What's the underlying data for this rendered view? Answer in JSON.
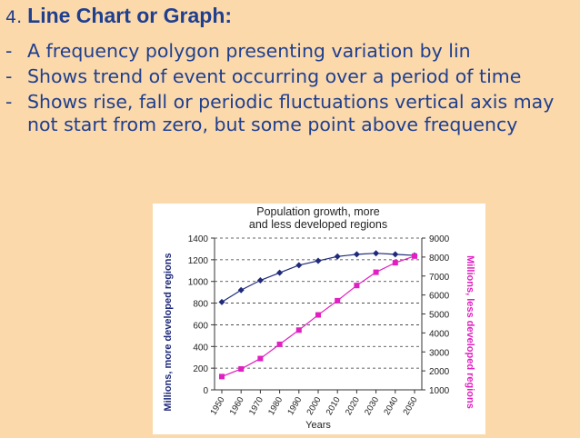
{
  "slide": {
    "number": "4.",
    "title": "Line Chart or Graph:",
    "bullets": [
      {
        "dash": "-",
        "text": "A frequency polygon presenting variation by lin"
      },
      {
        "dash": "-",
        "text": "Shows trend of event occurring over a period of time"
      },
      {
        "dash": "-",
        "text": "Shows rise, fall or periodic fluctuations vertical axis may not start from zero, but some point above frequency"
      }
    ]
  },
  "chart_data": {
    "type": "line",
    "title": [
      "Population growth, more",
      "and less developed regions"
    ],
    "xlabel": "Years",
    "ylabel_left": "Millions, more developed regions",
    "ylabel_right": "Millions, less developed regions",
    "x": [
      "1950",
      "1960",
      "1970",
      "1980",
      "1990",
      "2000",
      "2010",
      "2020",
      "2030",
      "2040",
      "2050"
    ],
    "x_tick_labels": [
      "1950",
      "1960",
      "1970",
      "1980",
      "1990",
      "2000",
      "2010",
      "2020",
      "2030",
      "2040",
      "2050"
    ],
    "ylim_left": [
      0,
      1400
    ],
    "yticks_left": [
      0,
      200,
      400,
      600,
      800,
      1000,
      1200,
      1400
    ],
    "ylim_right": [
      1000,
      9000
    ],
    "yticks_right": [
      1000,
      2000,
      3000,
      4000,
      5000,
      6000,
      7000,
      8000,
      9000
    ],
    "grid": "horizontal dashed",
    "series": [
      {
        "name": "",
        "axis": "left",
        "color": "#1f2a7a",
        "marker": "diamond",
        "values": [
          810,
          920,
          1010,
          1080,
          1150,
          1190,
          1230,
          1250,
          1260,
          1250,
          1240
        ]
      },
      {
        "name": "",
        "axis": "right",
        "color": "#e020c0",
        "marker": "square",
        "values": [
          1700,
          2100,
          2650,
          3400,
          4150,
          4950,
          5700,
          6500,
          7200,
          7700,
          8050
        ]
      }
    ]
  }
}
